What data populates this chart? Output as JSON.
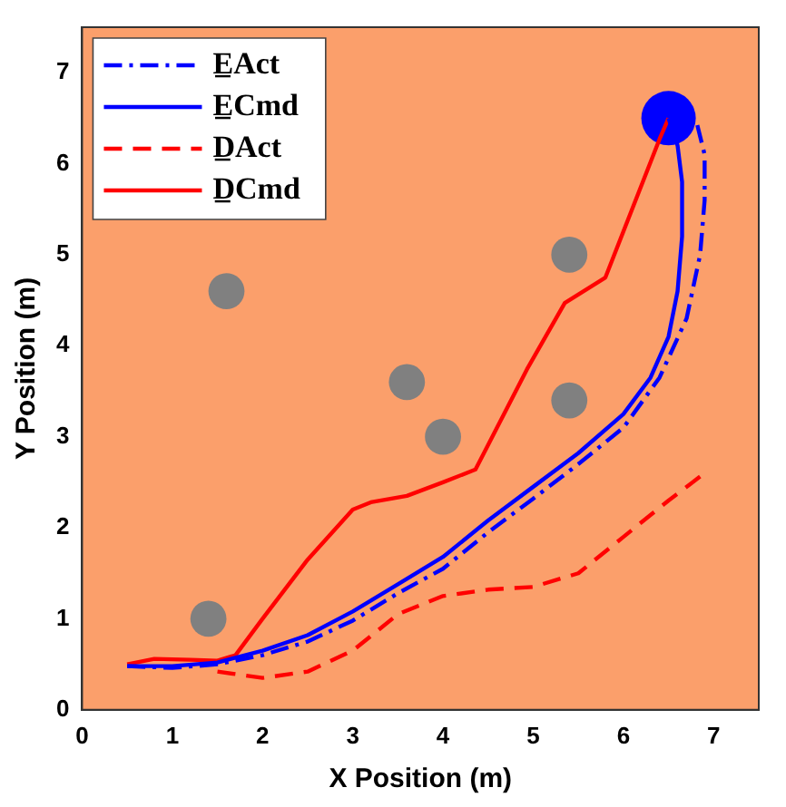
{
  "chart_data": {
    "type": "line",
    "xlabel": "X Position (m)",
    "ylabel": "Y Position (m)",
    "xlim": [
      0,
      7.5
    ],
    "ylim": [
      0,
      7.5
    ],
    "xticks": [
      0,
      1,
      2,
      3,
      4,
      5,
      6,
      7
    ],
    "yticks": [
      0,
      1,
      2,
      3,
      4,
      5,
      6,
      7
    ],
    "grid": false,
    "legend": "top left",
    "series": [
      {
        "name": "E̲Act",
        "color": "#0000ff",
        "line_style": "dashdot",
        "x": [
          0.5,
          1,
          1.5,
          2,
          2.5,
          3,
          3.5,
          4,
          4.5,
          5,
          5.5,
          6,
          6.4,
          6.7,
          6.85,
          6.9,
          6.9,
          6.8
        ],
        "values": [
          0.48,
          0.46,
          0.5,
          0.6,
          0.75,
          0.98,
          1.28,
          1.55,
          1.95,
          2.32,
          2.7,
          3.1,
          3.65,
          4.3,
          5,
          5.6,
          6.1,
          6.5
        ]
      },
      {
        "name": "E̲Cmd",
        "color": "#0000ff",
        "line_style": "solid",
        "x": [
          0.5,
          1,
          1.5,
          2,
          2.5,
          3,
          3.5,
          4,
          4.5,
          5,
          5.5,
          6,
          6.3,
          6.5,
          6.6,
          6.65,
          6.65,
          6.6,
          6.5
        ],
        "values": [
          0.48,
          0.48,
          0.52,
          0.65,
          0.82,
          1.08,
          1.38,
          1.68,
          2.08,
          2.45,
          2.82,
          3.25,
          3.65,
          4.1,
          4.6,
          5.2,
          5.8,
          6.2,
          6.5
        ]
      },
      {
        "name": "D̲Act",
        "color": "#ff0000",
        "line_style": "dashed",
        "x": [
          1.5,
          2,
          2.5,
          3,
          3.5,
          4,
          4.5,
          5,
          5.5,
          6,
          6.5,
          6.9
        ],
        "values": [
          0.42,
          0.35,
          0.42,
          0.65,
          1.05,
          1.25,
          1.32,
          1.35,
          1.5,
          1.9,
          2.3,
          2.6
        ]
      },
      {
        "name": "D̲Cmd",
        "color": "#ff0000",
        "line_style": "solid",
        "x": [
          0.5,
          0.8,
          1.2,
          1.5,
          1.7,
          2,
          2.5,
          3,
          3.2,
          3.6,
          4,
          4.36,
          4.93,
          5.35,
          5.8,
          6.4,
          6.5
        ],
        "values": [
          0.5,
          0.56,
          0.55,
          0.54,
          0.6,
          1,
          1.65,
          2.2,
          2.28,
          2.35,
          2.5,
          2.64,
          3.74,
          4.47,
          4.75,
          6.27,
          6.5
        ]
      },
      {
        "type": "bubble",
        "color": "#808080",
        "x": [
          1.4,
          1.6,
          3.6,
          4.0,
          5.4,
          5.4
        ],
        "values": [
          1.0,
          4.6,
          3.6,
          3.0,
          5.0,
          3.4
        ],
        "sizes": [
          0.44,
          0.44,
          0.44,
          0.44,
          0.44,
          0.44
        ]
      },
      {
        "type": "bubble",
        "color": "#0000ff",
        "x": [
          6.5
        ],
        "values": [
          6.5
        ],
        "sizes": [
          1
        ]
      }
    ]
  }
}
